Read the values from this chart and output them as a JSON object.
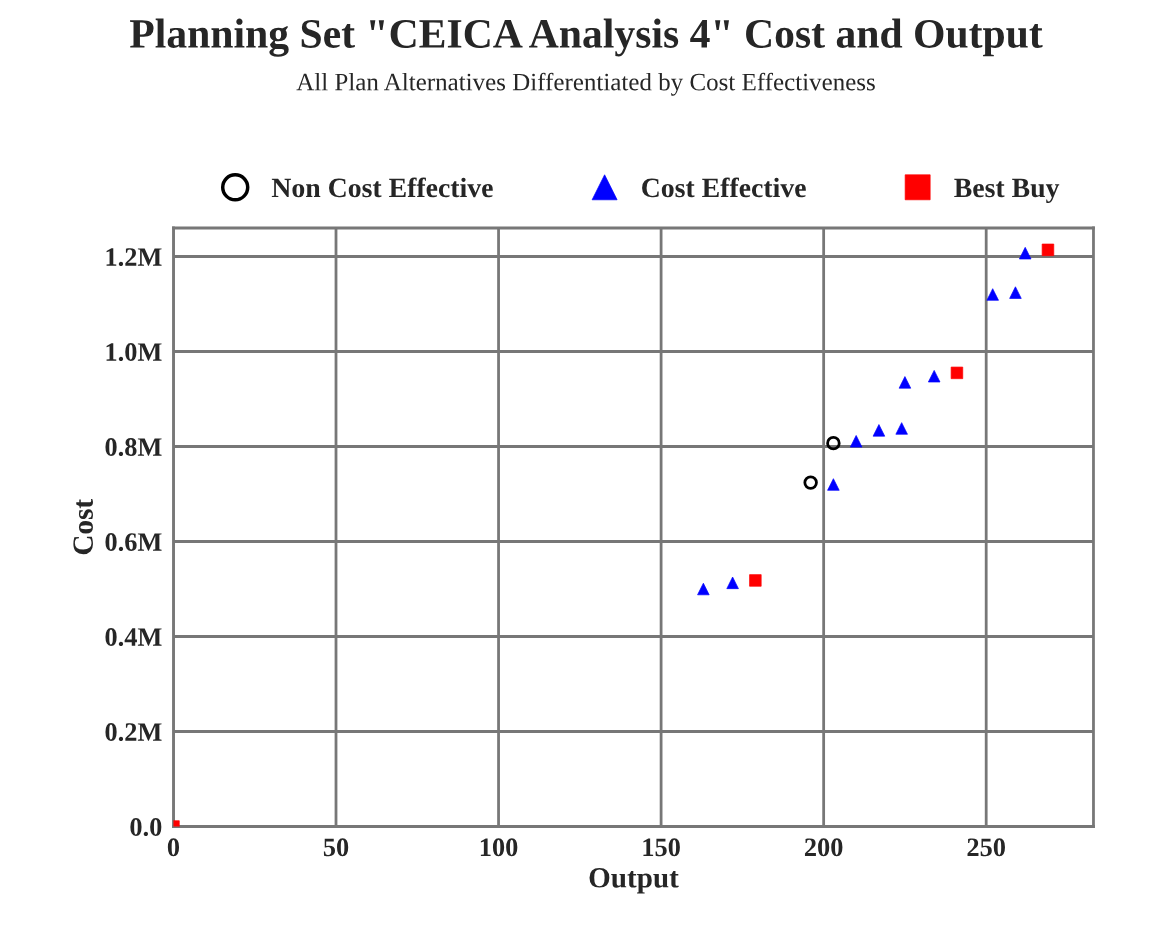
{
  "chart_data": {
    "type": "scatter",
    "title": "Planning Set \"CEICA Analysis 4\" Cost and Output",
    "subtitle": "All Plan Alternatives Differentiated by Cost Effectiveness",
    "xlabel": "Output",
    "ylabel": "Cost",
    "xlim": [
      0,
      283
    ],
    "xticks": [
      0,
      50,
      100,
      150,
      200,
      250
    ],
    "ylim": [
      0,
      1260000
    ],
    "yticks": [
      {
        "value": 0,
        "label": "0.0"
      },
      {
        "value": 200000,
        "label": "0.2M"
      },
      {
        "value": 400000,
        "label": "0.4M"
      },
      {
        "value": 600000,
        "label": "0.6M"
      },
      {
        "value": 800000,
        "label": "0.8M"
      },
      {
        "value": 1000000,
        "label": "1.0M"
      },
      {
        "value": 1200000,
        "label": "1.2M"
      }
    ],
    "grid": true,
    "legend": "top",
    "series": [
      {
        "name": "Non Cost Effective",
        "color": "#000000",
        "marker": "circle",
        "x": [
          196,
          203
        ],
        "values": [
          724000,
          807000
        ]
      },
      {
        "name": "Cost Effective",
        "color": "#0000ff",
        "marker": "triangle",
        "x": [
          163,
          172,
          203,
          210,
          217,
          224,
          225,
          234,
          252,
          259,
          262
        ],
        "values": [
          500000,
          513000,
          720000,
          811000,
          834000,
          838000,
          935000,
          948000,
          1120000,
          1124000,
          1207000
        ]
      },
      {
        "name": "Best Buy",
        "color": "#ff0000",
        "marker": "square",
        "x": [
          0,
          179,
          241,
          269
        ],
        "values": [
          0,
          518000,
          955000,
          1214000
        ]
      }
    ]
  }
}
